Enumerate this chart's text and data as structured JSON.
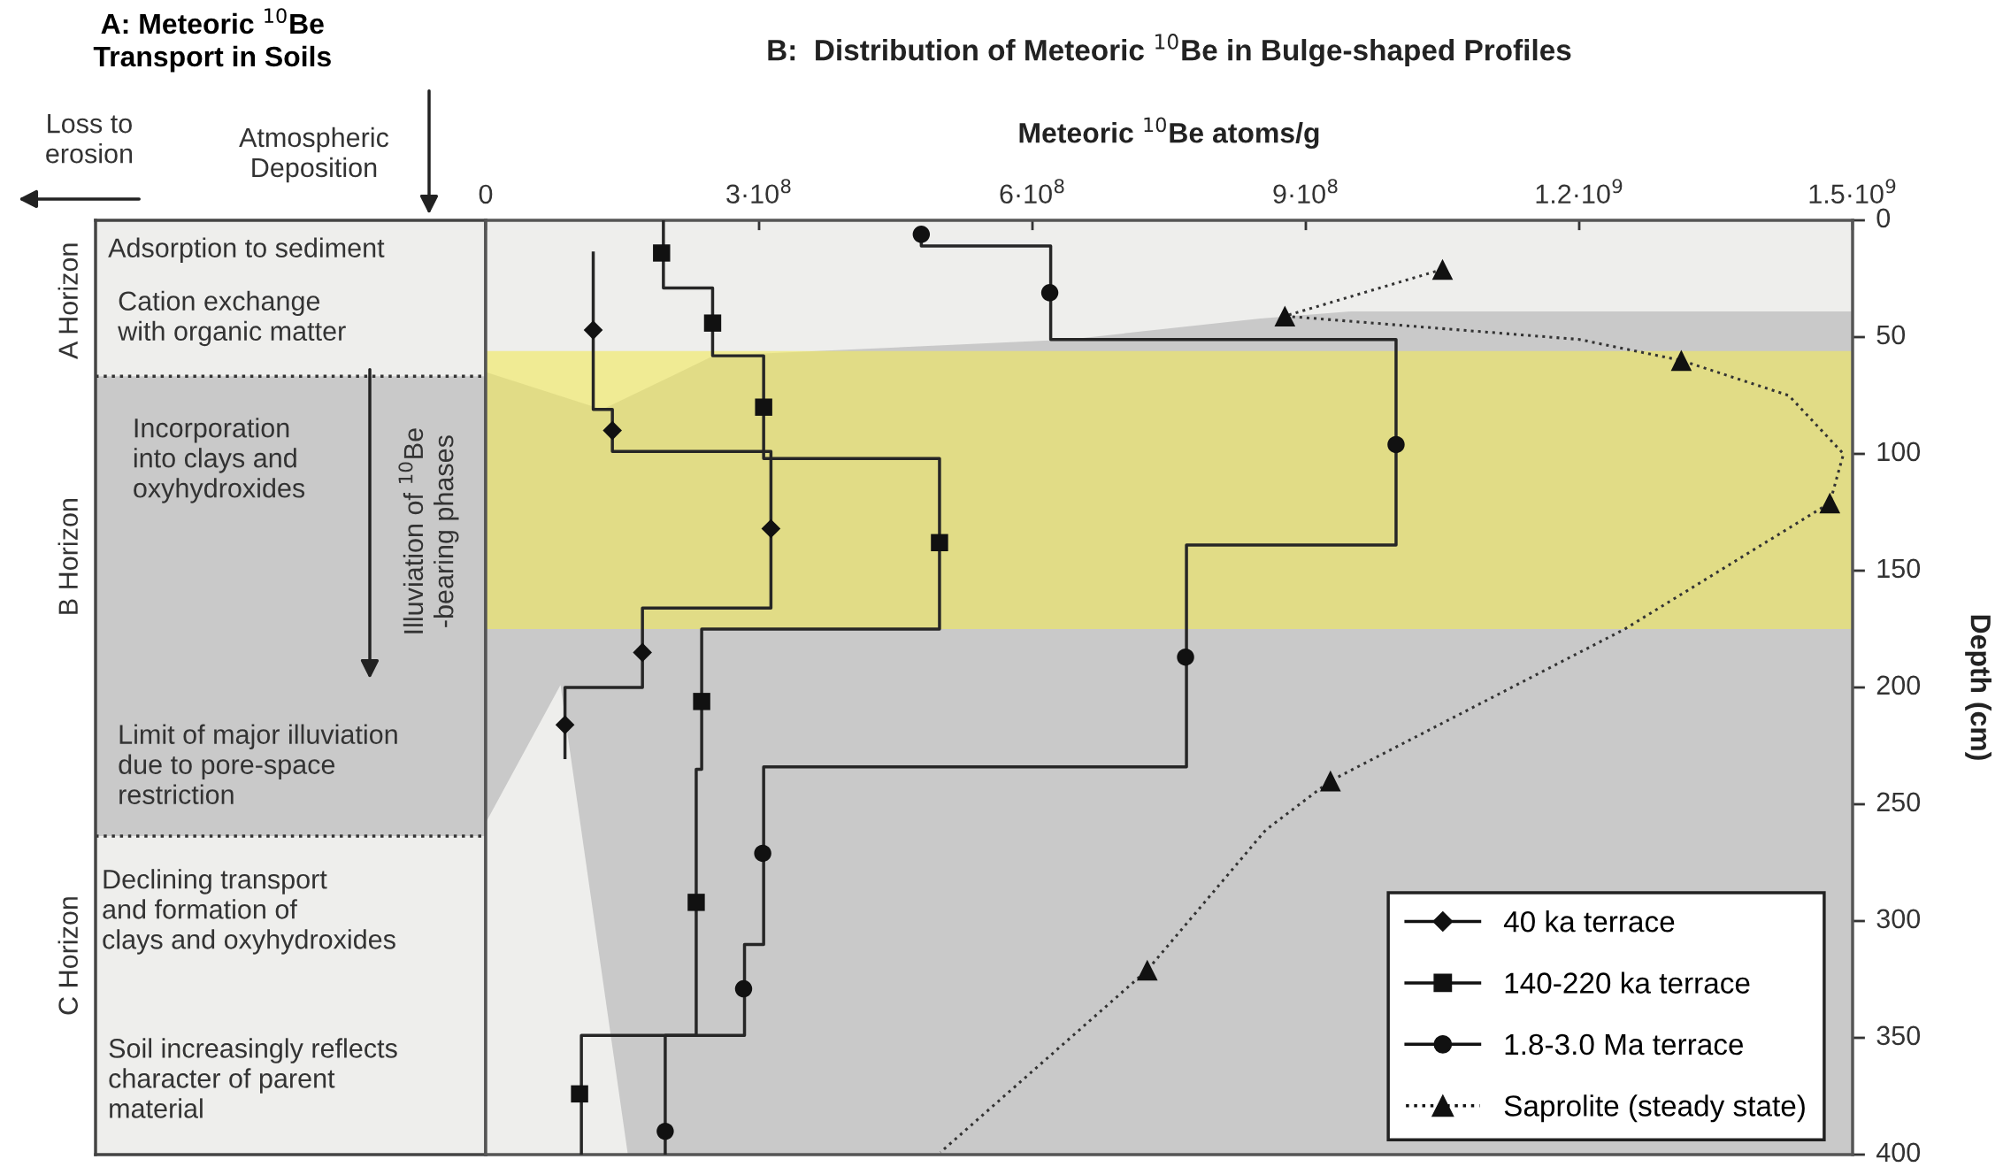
{
  "chart_data": [
    {
      "type": "other",
      "title": "A: Meteoric $^{10}$Be\nTransport in Soils",
      "annotations": [
        "Loss to\nerosion",
        "Atmospheric\nDeposition",
        "A Horizon",
        "B Horizon",
        "C Horizon",
        "Adsorption to sediment",
        "Cation exchange\nwith organic matter",
        "Incorporation\ninto clays and\noxyhydroxides",
        "Illuviation of $^{10}$Be\n-bearing phases",
        "Limit of major illuviation\ndue to pore-space\nrestriction",
        "Declining transport\nand formation of\nclays and oxyhydroxides",
        "Soil increasingly reflects\ncharacter of parent\nmaterial"
      ]
    },
    {
      "type": "line",
      "title": "B:  Distribution of Meteoric $^{10}$Be in Bulge-shaped Profiles",
      "xlabel": "Meteoric $^{10}$Be atoms/g",
      "ylabel": "Depth (cm)",
      "xlim": [
        0,
        1500000000
      ],
      "xticks": [
        0,
        {
          "value": 300000000,
          "label": "3·10$^{8}$"
        },
        {
          "value": 600000000,
          "label": "6·10$^{8}$"
        },
        {
          "value": 900000000,
          "label": "9·10$^{8}$"
        },
        {
          "value": 1200000000,
          "label": "1.2·10$^{9}$"
        },
        {
          "value": 1500000000,
          "label": "1.5·10$^{9}$"
        }
      ],
      "ylim": [
        400,
        0
      ],
      "yticks": [
        0,
        50,
        100,
        150,
        200,
        250,
        300,
        350,
        400
      ],
      "grid": false,
      "legend": "bottom right",
      "bands": [
        {
          "axis": "y",
          "from": 56,
          "to": 175,
          "color": "#f2ea5a"
        }
      ],
      "series": [
        {
          "type": "line",
          "color": "#262626",
          "line_style": "solid",
          "marker": "none",
          "x": [
            118000000,
            118000000,
            139000000,
            139000000,
            313000000,
            313000000,
            172000000,
            172000000,
            87000000,
            87000000
          ],
          "values": [
            14,
            81,
            81,
            99,
            99,
            166,
            166,
            200,
            200,
            230
          ]
        },
        {
          "type": "scatter",
          "name": "40 ka terrace",
          "color": "#111111",
          "marker": "diamond",
          "line_style": "solid",
          "x": [
            118000000,
            139000000,
            313000000,
            172000000,
            87000000
          ],
          "values": [
            47,
            90,
            132,
            185,
            216
          ]
        },
        {
          "type": "line",
          "color": "#262626",
          "line_style": "solid",
          "marker": "none",
          "x": [
            195000000,
            195000000,
            249000000,
            249000000,
            305000000,
            305000000,
            498000000,
            498000000,
            237000000,
            237000000,
            231000000,
            231000000,
            105000000,
            105000000
          ],
          "values": [
            0,
            29,
            29,
            58,
            58,
            102,
            102,
            175,
            175,
            235,
            235,
            349,
            349,
            400
          ]
        },
        {
          "type": "scatter",
          "name": "140-220 ka terrace",
          "color": "#111111",
          "marker": "square",
          "line_style": "solid",
          "x": [
            193000000,
            249000000,
            305000000,
            498000000,
            237000000,
            231000000,
            103000000
          ],
          "values": [
            14,
            44,
            80,
            138,
            206,
            292,
            374
          ]
        },
        {
          "type": "line",
          "color": "#262626",
          "line_style": "solid",
          "marker": "none",
          "x": [
            478000000,
            478000000,
            620000000,
            620000000,
            999000000,
            999000000,
            769000000,
            769000000,
            305000000,
            305000000,
            284000000,
            284000000,
            197000000,
            197000000
          ],
          "values": [
            6,
            11,
            11,
            51,
            51,
            139,
            139,
            234,
            234,
            310,
            310,
            349,
            349,
            400
          ]
        },
        {
          "type": "scatter",
          "name": "1.8-3.0 Ma terrace",
          "color": "#111111",
          "marker": "circle",
          "line_style": "solid",
          "x": [
            478000000,
            619000000,
            999000000,
            768000000,
            304000000,
            283000000,
            197000000
          ],
          "values": [
            6,
            31,
            96,
            187,
            271,
            329,
            390
          ]
        },
        {
          "type": "line",
          "color": "#333333",
          "line_style": "dotted",
          "marker": "none",
          "x": [
            1050000000,
            877000000,
            1200000000,
            1312000000,
            1430000000,
            1490000000,
            1475000000,
            1250000000,
            927000000,
            856000000,
            726000000,
            499000000
          ],
          "values": [
            21,
            41,
            51,
            60,
            75,
            100,
            121,
            175,
            240,
            261,
            321,
            399
          ]
        },
        {
          "type": "scatter",
          "name": "Saprolite (steady state)",
          "color": "#111111",
          "marker": "triangle",
          "line_style": "dotted",
          "x": [
            1050000000,
            877000000,
            1312000000,
            1475000000,
            927000000,
            726000000
          ],
          "values": [
            21,
            41,
            60,
            121,
            240,
            321
          ]
        }
      ]
    }
  ]
}
